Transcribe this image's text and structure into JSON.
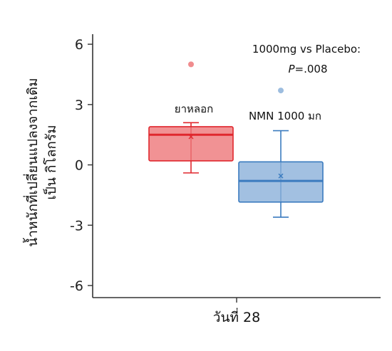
{
  "chart_data": {
    "type": "box",
    "title": "",
    "xlabel": "วันที่ 28",
    "ylabel_lines": [
      "น้ำหนักที่เปลี่ยนแปลงจากเดิม",
      "เป็น กิโลกรัม"
    ],
    "ylim": [
      -6.6,
      6.5
    ],
    "yticks": [
      {
        "value": 6,
        "label": "6"
      },
      {
        "value": 3,
        "label": "3"
      },
      {
        "value": 0,
        "label": "0"
      },
      {
        "value": -3,
        "label": "-3"
      },
      {
        "value": -6,
        "label": "-6"
      }
    ],
    "grid": false,
    "groups": [
      {
        "label": "ยาหลอก",
        "color": "#e0282e",
        "fill": "#f08c8e",
        "q1": 0.2,
        "median": 1.5,
        "q3": 1.9,
        "whisker_low": -0.4,
        "whisker_high": 2.1,
        "mean": 1.4,
        "outliers": [
          5.0
        ]
      },
      {
        "label": "NMN 1000 มก",
        "color": "#3b7bbf",
        "fill": "#9dbddf",
        "q1": -1.85,
        "median": -0.8,
        "q3": 0.15,
        "whisker_low": -2.6,
        "whisker_high": 1.7,
        "mean": -0.55,
        "outliers": [
          3.7
        ]
      }
    ],
    "annotation": {
      "line1": "1000mg vs Placebo:",
      "p_symbol": "P",
      "p_value": "=.008"
    }
  }
}
